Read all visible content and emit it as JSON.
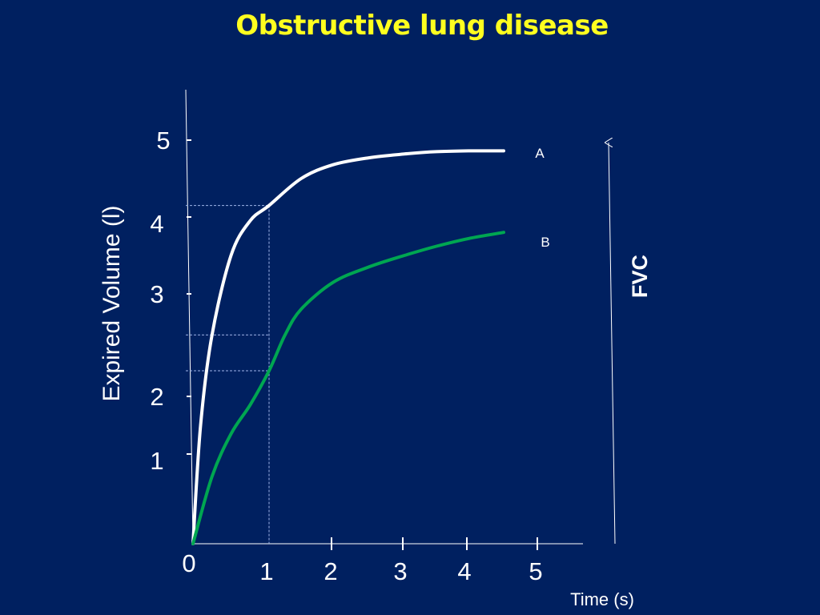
{
  "title": "Obstructive lung disease",
  "chart_data": {
    "type": "line",
    "ylabel": "Expired Volume (l)",
    "xlabel": "Time (s)",
    "x_ticks": [
      "0",
      "1",
      "2",
      "3",
      "4",
      "5"
    ],
    "y_ticks": [
      "1",
      "2",
      "3",
      "4",
      "5"
    ],
    "series": [
      {
        "name": "A",
        "color": "#ffffff",
        "x": [
          0,
          0.1,
          0.25,
          0.5,
          0.75,
          1.0,
          1.5,
          2.0,
          2.5,
          3.0,
          3.5,
          4.0,
          4.5
        ],
        "y": [
          0,
          1.5,
          2.6,
          3.5,
          3.95,
          4.15,
          4.5,
          4.68,
          4.77,
          4.82,
          4.85,
          4.86,
          4.86
        ]
      },
      {
        "name": "B",
        "color": "#00a651",
        "x": [
          0,
          0.25,
          0.5,
          0.75,
          1.0,
          1.25,
          1.5,
          2.0,
          2.5,
          3.0,
          3.5,
          4.0,
          4.5
        ],
        "y": [
          0,
          0.75,
          1.35,
          1.85,
          2.25,
          2.6,
          2.85,
          3.15,
          3.35,
          3.5,
          3.62,
          3.72,
          3.8
        ]
      }
    ],
    "annotation": "FVC",
    "guide_lines": {
      "x": 1,
      "y": [
        4.15,
        2.6,
        2.25
      ]
    },
    "grid": false
  }
}
